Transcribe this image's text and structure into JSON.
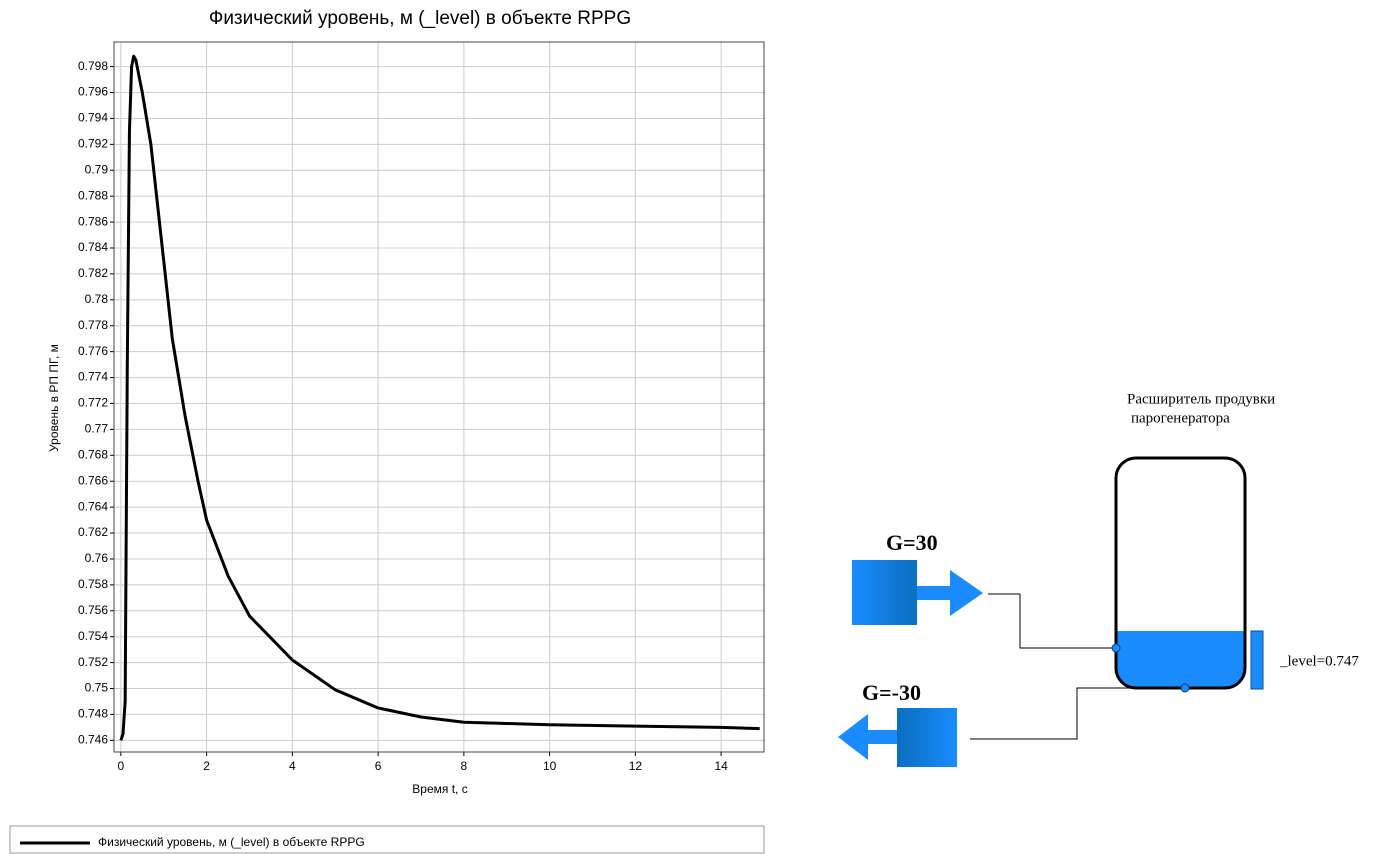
{
  "chart_data": {
    "type": "line",
    "title": "Физический уровень, м (_level) в объекте RPPG",
    "xlabel": "Время t, с",
    "ylabel": "Уровень в РП ПГ, м",
    "x": [
      0,
      0.05,
      0.1,
      0.15,
      0.2,
      0.25,
      0.3,
      0.35,
      0.5,
      0.7,
      0.8,
      1.0,
      1.2,
      1.5,
      1.8,
      2.0,
      2.5,
      3.0,
      4.0,
      5.0,
      6.0,
      7.0,
      8.0,
      9.0,
      10.0,
      12.0,
      14.0,
      14.9
    ],
    "series": [
      {
        "name": "Физический уровень, м (_level) в объекте RPPG",
        "color": "#000000",
        "values": [
          0.746,
          0.7465,
          0.749,
          0.775,
          0.793,
          0.798,
          0.7988,
          0.7985,
          0.796,
          0.792,
          0.789,
          0.783,
          0.777,
          0.771,
          0.766,
          0.763,
          0.7587,
          0.7556,
          0.7522,
          0.7499,
          0.7485,
          0.7478,
          0.7474,
          0.7473,
          0.7472,
          0.7471,
          0.747,
          0.7469
        ]
      }
    ],
    "xlim": [
      -0.16,
      15
    ],
    "ylim": [
      0.7451,
      0.7999
    ],
    "xticks": [
      0,
      2,
      4,
      6,
      8,
      10,
      12,
      14
    ],
    "yticks": [
      0.746,
      0.748,
      0.75,
      0.752,
      0.754,
      0.756,
      0.758,
      0.76,
      0.762,
      0.764,
      0.766,
      0.768,
      0.77,
      0.772,
      0.774,
      0.776,
      0.778,
      0.78,
      0.782,
      0.784,
      0.786,
      0.788,
      0.79,
      0.792,
      0.794,
      0.796,
      0.798
    ],
    "grid": true
  },
  "diagram": {
    "title_line1": "Расширитель продувки",
    "title_line2": "парогенератора",
    "inlet_label": "G=30",
    "outlet_label": "G=-30",
    "level_label": "_level=0.747"
  }
}
